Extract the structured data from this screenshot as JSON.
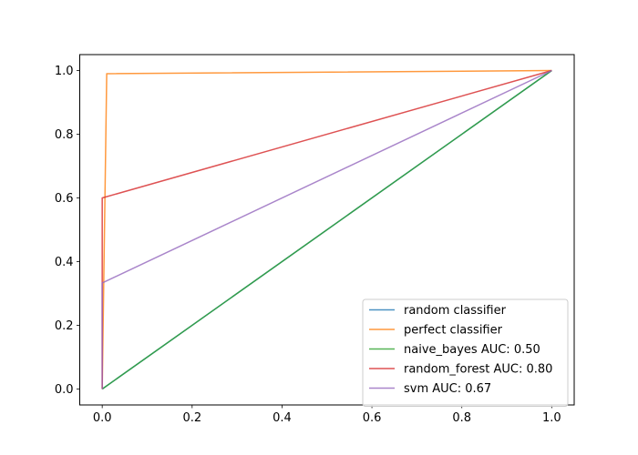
{
  "chart_data": {
    "type": "line",
    "title": "",
    "xlabel": "",
    "ylabel": "",
    "xlim": [
      -0.05,
      1.05
    ],
    "ylim": [
      -0.05,
      1.05
    ],
    "xticks": [
      "0.0",
      "0.2",
      "0.4",
      "0.6",
      "0.8",
      "1.0"
    ],
    "yticks": [
      "0.0",
      "0.2",
      "0.4",
      "0.6",
      "0.8",
      "1.0"
    ],
    "grid": false,
    "legend_position": "lower-right",
    "series": [
      {
        "name": "random classifier",
        "color": "#1f77b4",
        "x": [
          0,
          1
        ],
        "y": [
          0,
          1
        ]
      },
      {
        "name": "perfect classifier",
        "color": "#ff7f0e",
        "x": [
          0,
          0.01,
          1
        ],
        "y": [
          0,
          0.99,
          1
        ]
      },
      {
        "name": "naive_bayes AUC: 0.50",
        "color": "#2ca02c",
        "x": [
          0,
          1
        ],
        "y": [
          0,
          1
        ]
      },
      {
        "name": "random_forest AUC: 0.80",
        "color": "#d62728",
        "x": [
          0,
          0,
          1
        ],
        "y": [
          0,
          0.6,
          1
        ]
      },
      {
        "name": "svm AUC: 0.67",
        "color": "#9467bd",
        "x": [
          0,
          0,
          1
        ],
        "y": [
          0,
          0.333,
          1
        ]
      }
    ]
  }
}
